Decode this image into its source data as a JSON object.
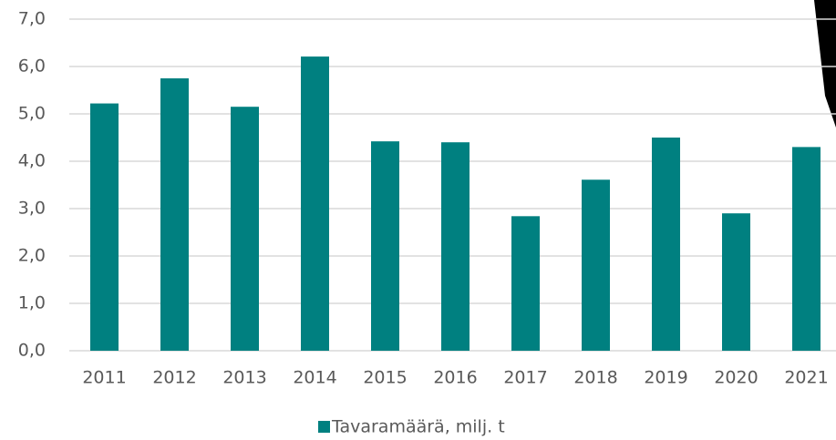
{
  "chart_data": {
    "type": "bar",
    "categories": [
      "2011",
      "2012",
      "2013",
      "2014",
      "2015",
      "2016",
      "2017",
      "2018",
      "2019",
      "2020",
      "2021"
    ],
    "series": [
      {
        "name": "Tavaramäärä, milj. t",
        "color": "#008080",
        "values": [
          5.22,
          5.75,
          5.15,
          6.21,
          4.42,
          4.4,
          2.84,
          3.61,
          4.5,
          2.9,
          4.3
        ]
      }
    ],
    "ylim": [
      0,
      7
    ],
    "yticks": [
      {
        "value": 0,
        "label": "0,0"
      },
      {
        "value": 1,
        "label": "1,0"
      },
      {
        "value": 2,
        "label": "2,0"
      },
      {
        "value": 3,
        "label": "3,0"
      },
      {
        "value": 4,
        "label": "4,0"
      },
      {
        "value": 5,
        "label": "5,0"
      },
      {
        "value": 6,
        "label": "6,0"
      },
      {
        "value": 7,
        "label": "7,0"
      }
    ],
    "grid": true,
    "legend": "bottom"
  }
}
